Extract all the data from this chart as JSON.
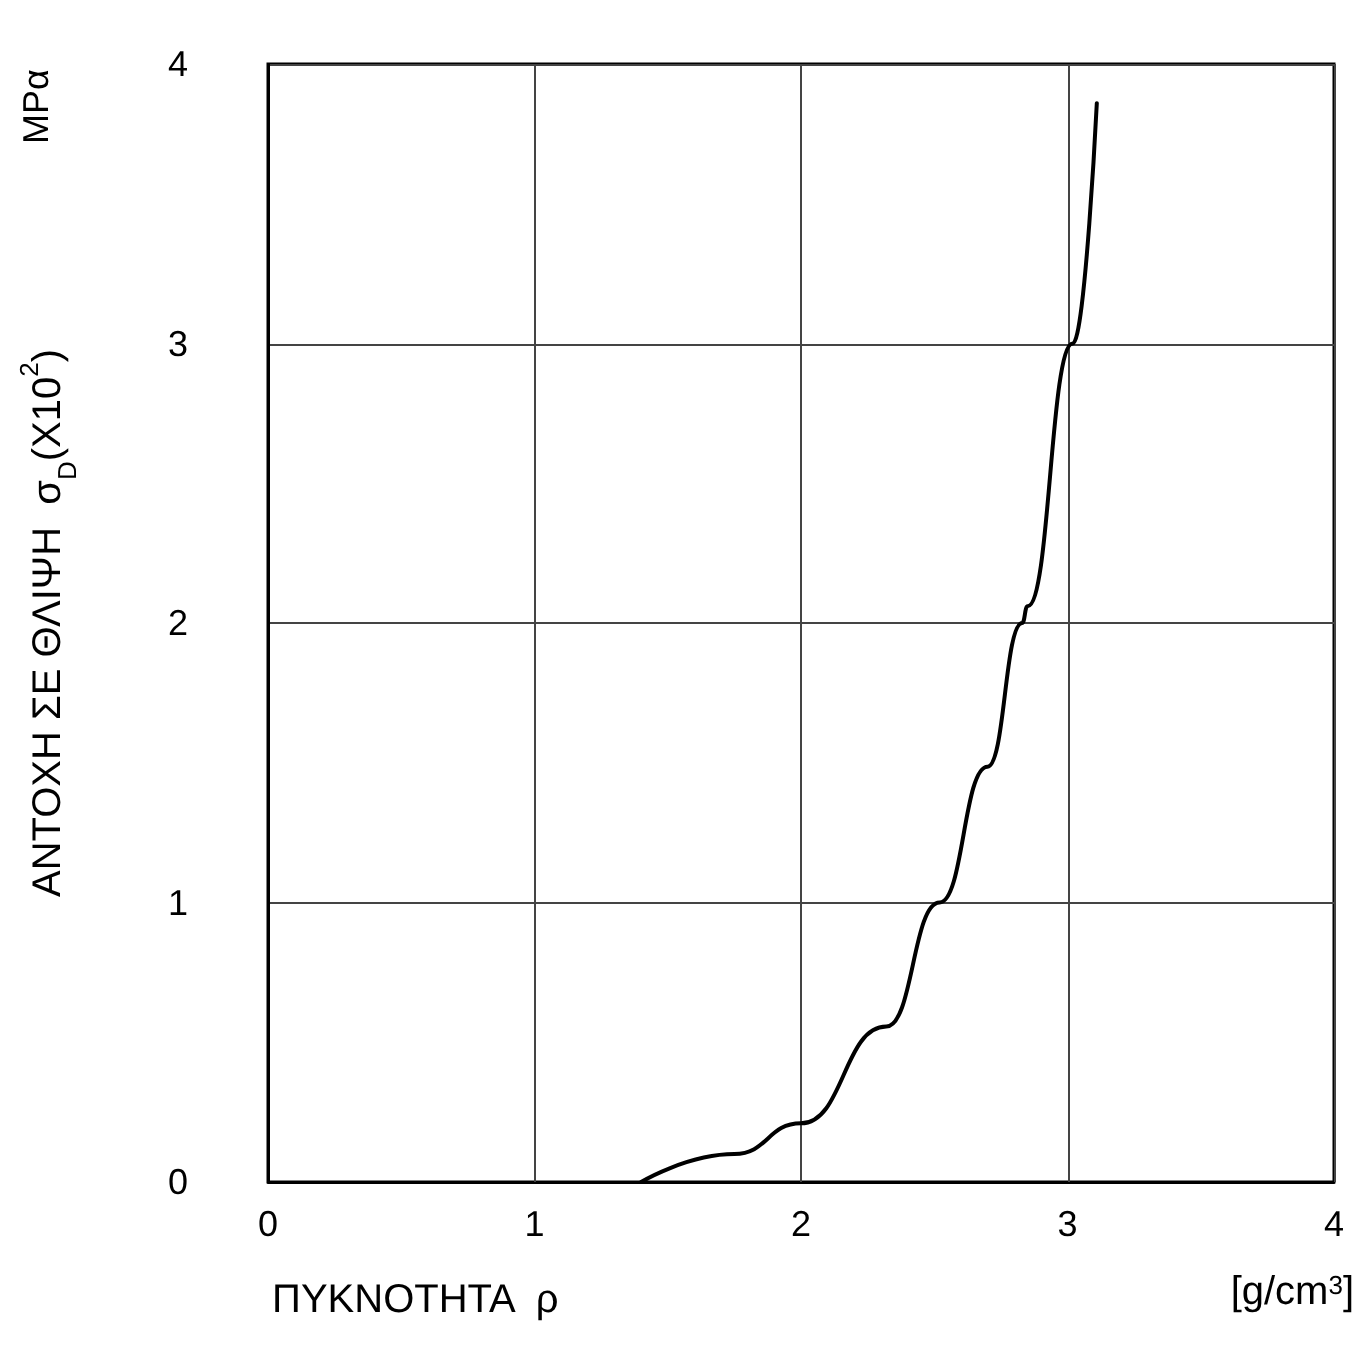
{
  "chart_data": {
    "type": "line",
    "xlabel": "ΠΥΚΝΟΤΗΤΑ  ρ",
    "ylabel": "ΑΝΤΟΧΗ ΣΕ ΘΛΙΨΗ  σ$_{D}$(X10$^{2}$)",
    "annotations": [
      "MPα",
      "[g/cm$^{3}$]"
    ],
    "xlim": [
      0,
      4
    ],
    "xticks": [
      0,
      1,
      2,
      3,
      4
    ],
    "ylim": [
      0,
      4
    ],
    "yticks": [
      0,
      1,
      2,
      3,
      4
    ],
    "grid": true,
    "marker": "none",
    "line_style": "solid",
    "series": [
      {
        "color": "#000000",
        "x": [
          1.4,
          1.75,
          2.0,
          2.32,
          2.52,
          2.7,
          2.83,
          2.85,
          3.02,
          3.11
        ],
        "values": [
          0,
          0.1,
          0.21,
          0.556,
          1,
          1.486,
          2,
          2.06,
          3,
          3.86
        ]
      }
    ]
  }
}
